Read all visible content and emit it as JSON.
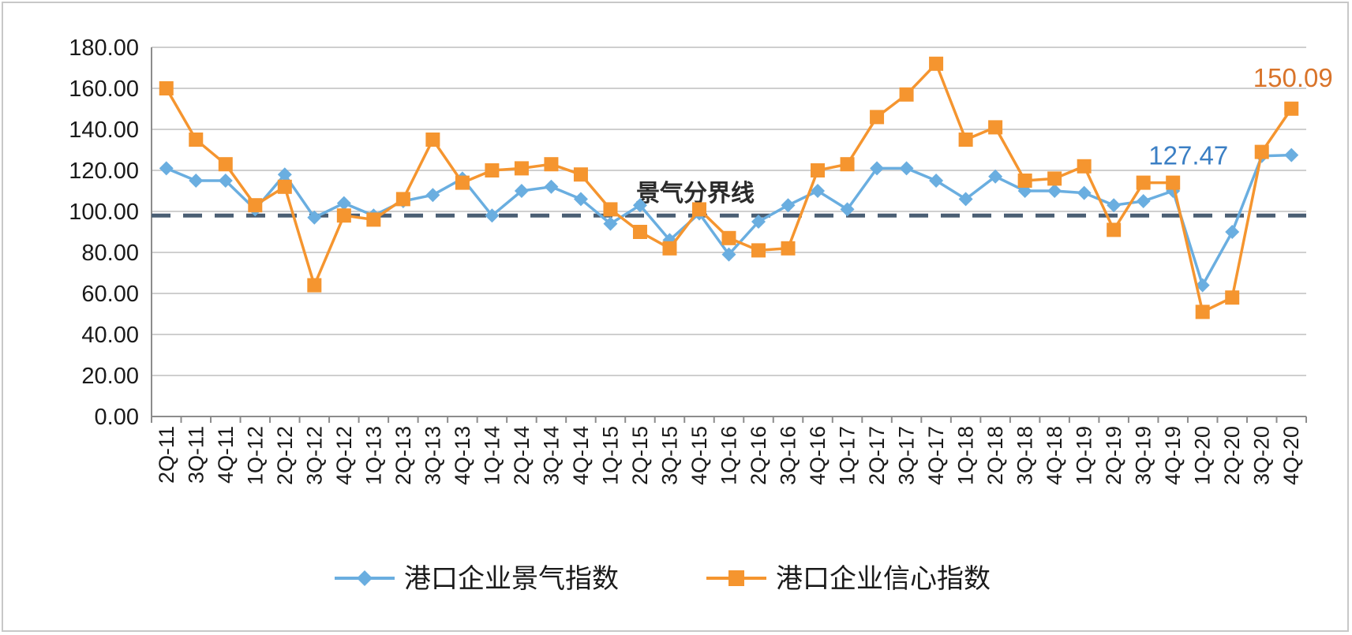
{
  "chart_data": {
    "type": "line",
    "categories": [
      "2Q-11",
      "3Q-11",
      "4Q-11",
      "1Q-12",
      "2Q-12",
      "3Q-12",
      "4Q-12",
      "1Q-13",
      "2Q-13",
      "3Q-13",
      "4Q-13",
      "1Q-14",
      "2Q-14",
      "3Q-14",
      "4Q-14",
      "1Q-15",
      "2Q-15",
      "3Q-15",
      "4Q-15",
      "1Q-16",
      "2Q-16",
      "3Q-16",
      "4Q-16",
      "1Q-17",
      "2Q-17",
      "3Q-17",
      "4Q-17",
      "1Q-18",
      "2Q-18",
      "3Q-18",
      "4Q-18",
      "1Q-19",
      "2Q-19",
      "3Q-19",
      "4Q-19",
      "1Q-20",
      "2Q-20",
      "3Q-20",
      "4Q-20"
    ],
    "series": [
      {
        "name": "港口企业景气指数",
        "color": "#6aaee0",
        "marker": "diamond",
        "values": [
          121,
          115,
          115,
          101,
          118,
          97,
          104,
          98,
          105,
          108,
          116,
          98,
          110,
          112,
          106,
          94,
          103,
          86,
          99,
          79,
          95,
          103,
          110,
          101,
          121,
          121,
          115,
          106,
          117,
          110,
          110,
          109,
          103,
          105,
          110,
          64,
          90,
          127,
          127.47
        ]
      },
      {
        "name": "港口企业信心指数",
        "color": "#f5952f",
        "marker": "square",
        "values": [
          160,
          135,
          123,
          103,
          112,
          64,
          98,
          96,
          106,
          135,
          114,
          120,
          121,
          123,
          118,
          101,
          90,
          82,
          101,
          87,
          81,
          82,
          120,
          123,
          146,
          157,
          172,
          135,
          141,
          115,
          116,
          122,
          91,
          114,
          114,
          51,
          58,
          129,
          150.09
        ]
      }
    ],
    "ylim": [
      0,
      180
    ],
    "yticks": [
      "0.00",
      "20.00",
      "40.00",
      "60.00",
      "80.00",
      "100.00",
      "120.00",
      "140.00",
      "160.00",
      "180.00"
    ],
    "reference_line": {
      "value": 98,
      "label": "景气分界线",
      "color": "#4a5e73",
      "style": "dashed"
    },
    "data_labels": [
      {
        "series": 0,
        "index": 38,
        "text": "127.47"
      },
      {
        "series": 1,
        "index": 38,
        "text": "150.09"
      }
    ],
    "grid": true,
    "legend": "bottom",
    "xlabel": "",
    "ylabel": ""
  }
}
